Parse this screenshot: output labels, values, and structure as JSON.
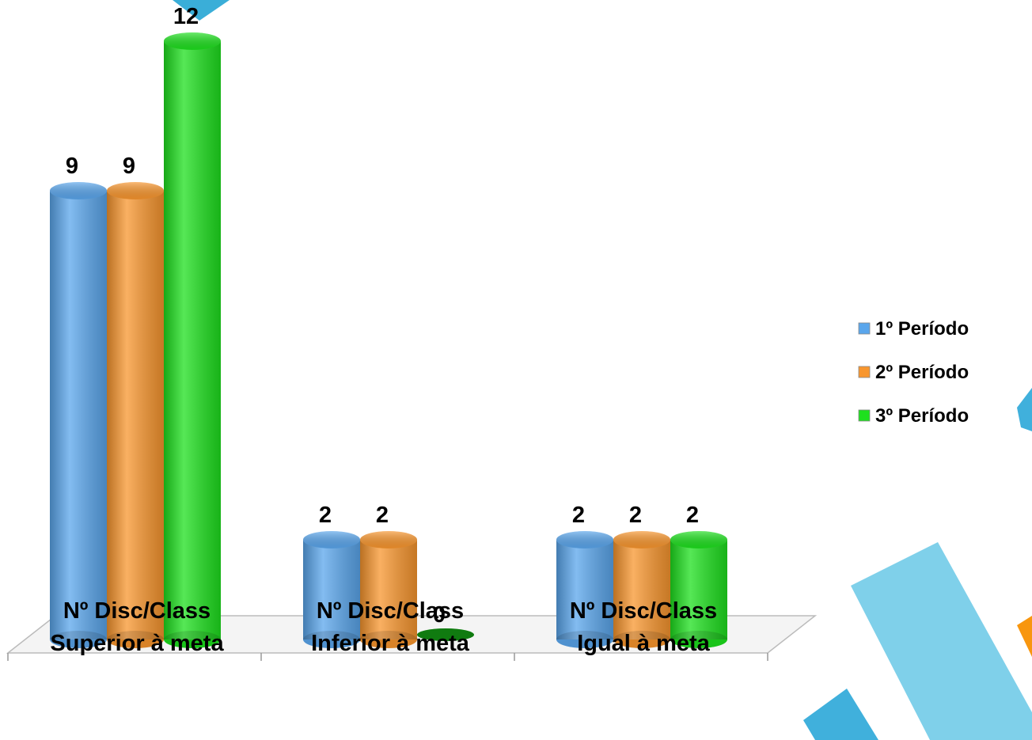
{
  "chart_data": {
    "type": "bar",
    "categories": [
      "Nº Disc/Class\nSuperior à meta",
      "Nº Disc/Class\nInferior à meta",
      "Nº Disc/Class\nIgual à meta"
    ],
    "series": [
      {
        "name": "1º Período",
        "color": "#5aa6ec",
        "values": [
          9,
          2,
          2
        ]
      },
      {
        "name": "2º Período",
        "color": "#f8962e",
        "values": [
          9,
          2,
          2
        ]
      },
      {
        "name": "3º Período",
        "color": "#1ee01e",
        "values": [
          12,
          0,
          2
        ]
      }
    ],
    "legend": "right"
  }
}
